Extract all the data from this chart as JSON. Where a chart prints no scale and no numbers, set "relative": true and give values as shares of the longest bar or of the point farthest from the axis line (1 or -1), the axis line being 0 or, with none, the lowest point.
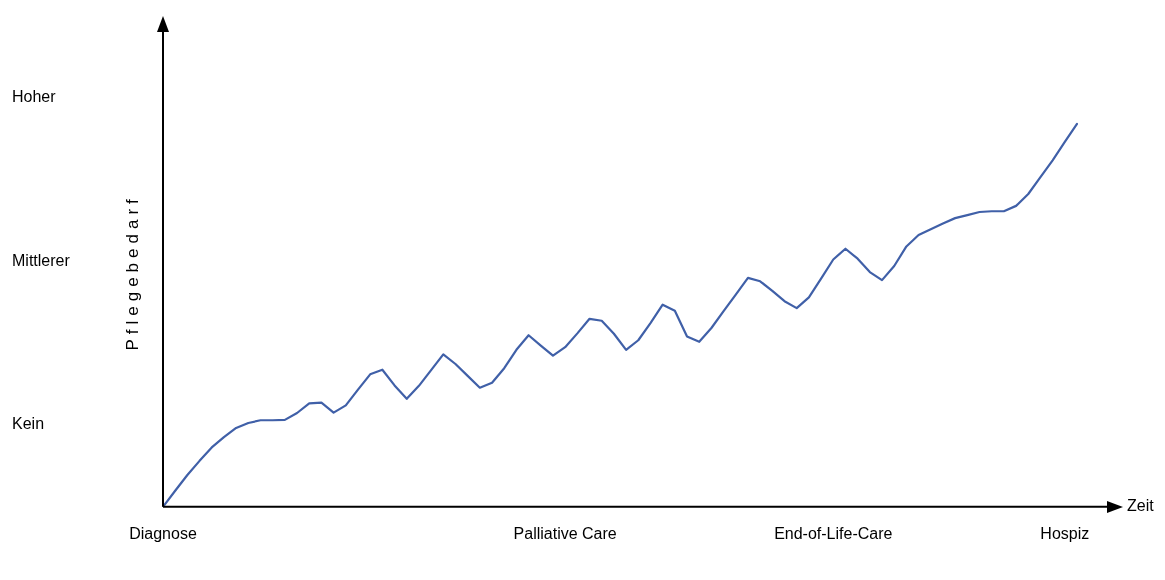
{
  "chart_data": {
    "type": "line",
    "relative": true,
    "xlabel": "Zeit",
    "ylabel": "Pflegebedarf",
    "categories": [
      "Diagnose",
      null,
      null,
      null,
      null,
      null,
      null,
      null,
      null,
      null,
      null,
      null,
      null,
      null,
      null,
      null,
      null,
      null,
      null,
      null,
      null,
      null,
      null,
      null,
      null,
      null,
      null,
      null,
      null,
      null,
      null,
      null,
      null,
      "Palliative Care",
      null,
      null,
      null,
      null,
      null,
      null,
      null,
      null,
      null,
      null,
      null,
      null,
      null,
      null,
      null,
      null,
      null,
      null,
      null,
      null,
      null,
      "End-of-Life-Care",
      null,
      null,
      null,
      null,
      null,
      null,
      null,
      null,
      null,
      null,
      null,
      null,
      null,
      null,
      null,
      null,
      null,
      null,
      "Hospiz",
      null
    ],
    "series": [
      {
        "color": "#4060a8",
        "values": [
          0,
          0.042,
          0.083,
          0.12,
          0.155,
          0.182,
          0.206,
          0.219,
          0.226,
          0.226,
          0.227,
          0.245,
          0.27,
          0.272,
          0.246,
          0.265,
          0.306,
          0.346,
          0.358,
          0.317,
          0.282,
          0.316,
          0.357,
          0.398,
          0.373,
          0.342,
          0.311,
          0.324,
          0.362,
          0.41,
          0.448,
          0.421,
          0.395,
          0.417,
          0.453,
          0.491,
          0.486,
          0.452,
          0.41,
          0.435,
          0.48,
          0.528,
          0.512,
          0.445,
          0.431,
          0.467,
          0.511,
          0.554,
          0.598,
          0.589,
          0.564,
          0.537,
          0.519,
          0.547,
          0.596,
          0.646,
          0.674,
          0.648,
          0.613,
          0.592,
          0.629,
          0.68,
          0.71,
          0.725,
          0.74,
          0.754,
          0.762,
          0.77,
          0.772,
          0.772,
          0.786,
          0.817,
          0.861,
          0.905,
          0.953,
          1
        ]
      }
    ],
    "annotations": [
      "Kein",
      "Mittlerer",
      "Hoher"
    ],
    "legend": false,
    "marker": "none",
    "line_style": "solid"
  }
}
